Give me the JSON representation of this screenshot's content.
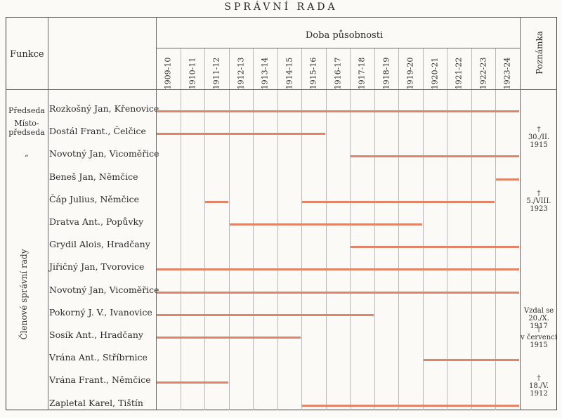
{
  "title": "SPRÁVNÍ RADA",
  "header": {
    "funkce": "Funkce",
    "doba": "Doba působnosti",
    "poznamka": "Poznámka"
  },
  "years": [
    "1909-10",
    "1910-11",
    "1911-12",
    "1912-13",
    "1913-14",
    "1914-15",
    "1915-16",
    "1916-17",
    "1917-18",
    "1918-19",
    "1919-20",
    "1920-21",
    "1921-22",
    "1922-23",
    "1923-24"
  ],
  "functions": {
    "predseda": "Předseda",
    "mistopredseda": "Místo-\npředseda",
    "ditto": "„",
    "clenove": "Členové správní rady"
  },
  "rows": [
    {
      "name": "Rozkošný Jan, Křenovice",
      "start": 0,
      "end": 15,
      "note": ""
    },
    {
      "name": "Dostál Frant., Čelčice",
      "start": 0,
      "end": 7,
      "note": "†\n30./II. 1915"
    },
    {
      "name": "Novotný Jan, Vicoměřice",
      "start": 8,
      "end": 15,
      "note": ""
    },
    {
      "name": "Beneš Jan, Němčice",
      "start": 14,
      "end": 15,
      "note": ""
    },
    {
      "name": "Čáp Julius, Němčice",
      "segments": [
        [
          2,
          3
        ],
        [
          6,
          14
        ]
      ],
      "note": "†\n5./VIII.\n1923"
    },
    {
      "name": "Dratva Ant., Popůvky",
      "start": 3,
      "end": 11,
      "note": ""
    },
    {
      "name": "Grydil Alois, Hradčany",
      "start": 8,
      "end": 15,
      "note": ""
    },
    {
      "name": "Jiřičný Jan, Tvorovice",
      "start": 0,
      "end": 15,
      "note": ""
    },
    {
      "name": "Novotný Jan, Vicoměřice",
      "start": 0,
      "end": 15,
      "note": ""
    },
    {
      "name": "Pokorný J. V., Ivanovice",
      "start": 0,
      "end": 9,
      "note": "Vzdal se\n20./X. 1917"
    },
    {
      "name": "Sosík Ant., Hradčany",
      "start": 0,
      "end": 6,
      "note": "†\nv červenci\n1915"
    },
    {
      "name": "Vrána Ant., Stříbrnice",
      "start": 11,
      "end": 15,
      "note": ""
    },
    {
      "name": "Vrána Frant., Němčice",
      "start": 0,
      "end": 3,
      "note": "†\n18./V. 1912"
    },
    {
      "name": "Zapletal Karel, Tištín",
      "start": 6,
      "end": 15,
      "note": ""
    }
  ]
}
